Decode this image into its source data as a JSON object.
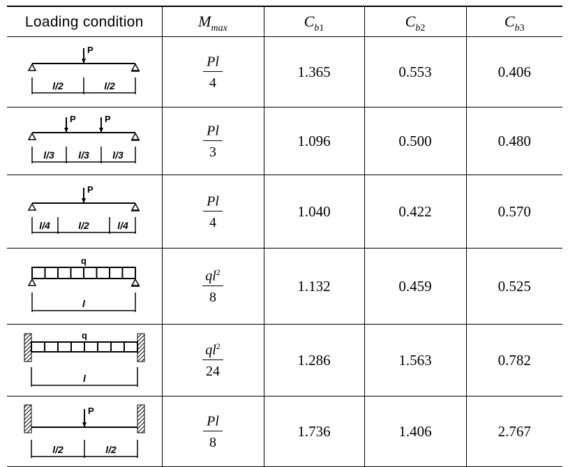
{
  "table": {
    "headers": {
      "loading": "Loading condition",
      "mmax": {
        "main": "M",
        "sub": "max"
      },
      "cb1": {
        "main": "C",
        "sub_letter": "b",
        "sub_num": "1"
      },
      "cb2": {
        "main": "C",
        "sub_letter": "b",
        "sub_num": "2"
      },
      "cb3": {
        "main": "C",
        "sub_letter": "b",
        "sub_num": "3"
      }
    },
    "rows": [
      {
        "diagram": {
          "load_label": "P",
          "spans": [
            "l/2",
            "l/2"
          ]
        },
        "mmax": {
          "num": "Pl",
          "num_sup": "",
          "den": "4"
        },
        "cb1": "1.365",
        "cb2": "0.553",
        "cb3": "0.406"
      },
      {
        "diagram": {
          "load_label": "P",
          "load_label_2": "P",
          "spans": [
            "l/3",
            "l/3",
            "l/3"
          ]
        },
        "mmax": {
          "num": "Pl",
          "num_sup": "",
          "den": "3"
        },
        "cb1": "1.096",
        "cb2": "0.500",
        "cb3": "0.480"
      },
      {
        "diagram": {
          "load_label": "P",
          "spans": [
            "l/4",
            "l/2",
            "l/4"
          ]
        },
        "mmax": {
          "num": "Pl",
          "num_sup": "",
          "den": "4"
        },
        "cb1": "1.040",
        "cb2": "0.422",
        "cb3": "0.570"
      },
      {
        "diagram": {
          "load_label": "q",
          "spans": [
            "l"
          ]
        },
        "mmax": {
          "num": "ql",
          "num_sup": "2",
          "den": "8"
        },
        "cb1": "1.132",
        "cb2": "0.459",
        "cb3": "0.525"
      },
      {
        "diagram": {
          "load_label": "q",
          "spans": [
            "l"
          ]
        },
        "mmax": {
          "num": "ql",
          "num_sup": "2",
          "den": "24"
        },
        "cb1": "1.286",
        "cb2": "1.563",
        "cb3": "0.782"
      },
      {
        "diagram": {
          "load_label": "P",
          "spans": [
            "l/2",
            "l/2"
          ]
        },
        "mmax": {
          "num": "Pl",
          "num_sup": "",
          "den": "8"
        },
        "cb1": "1.736",
        "cb2": "1.406",
        "cb3": "2.767"
      }
    ]
  }
}
